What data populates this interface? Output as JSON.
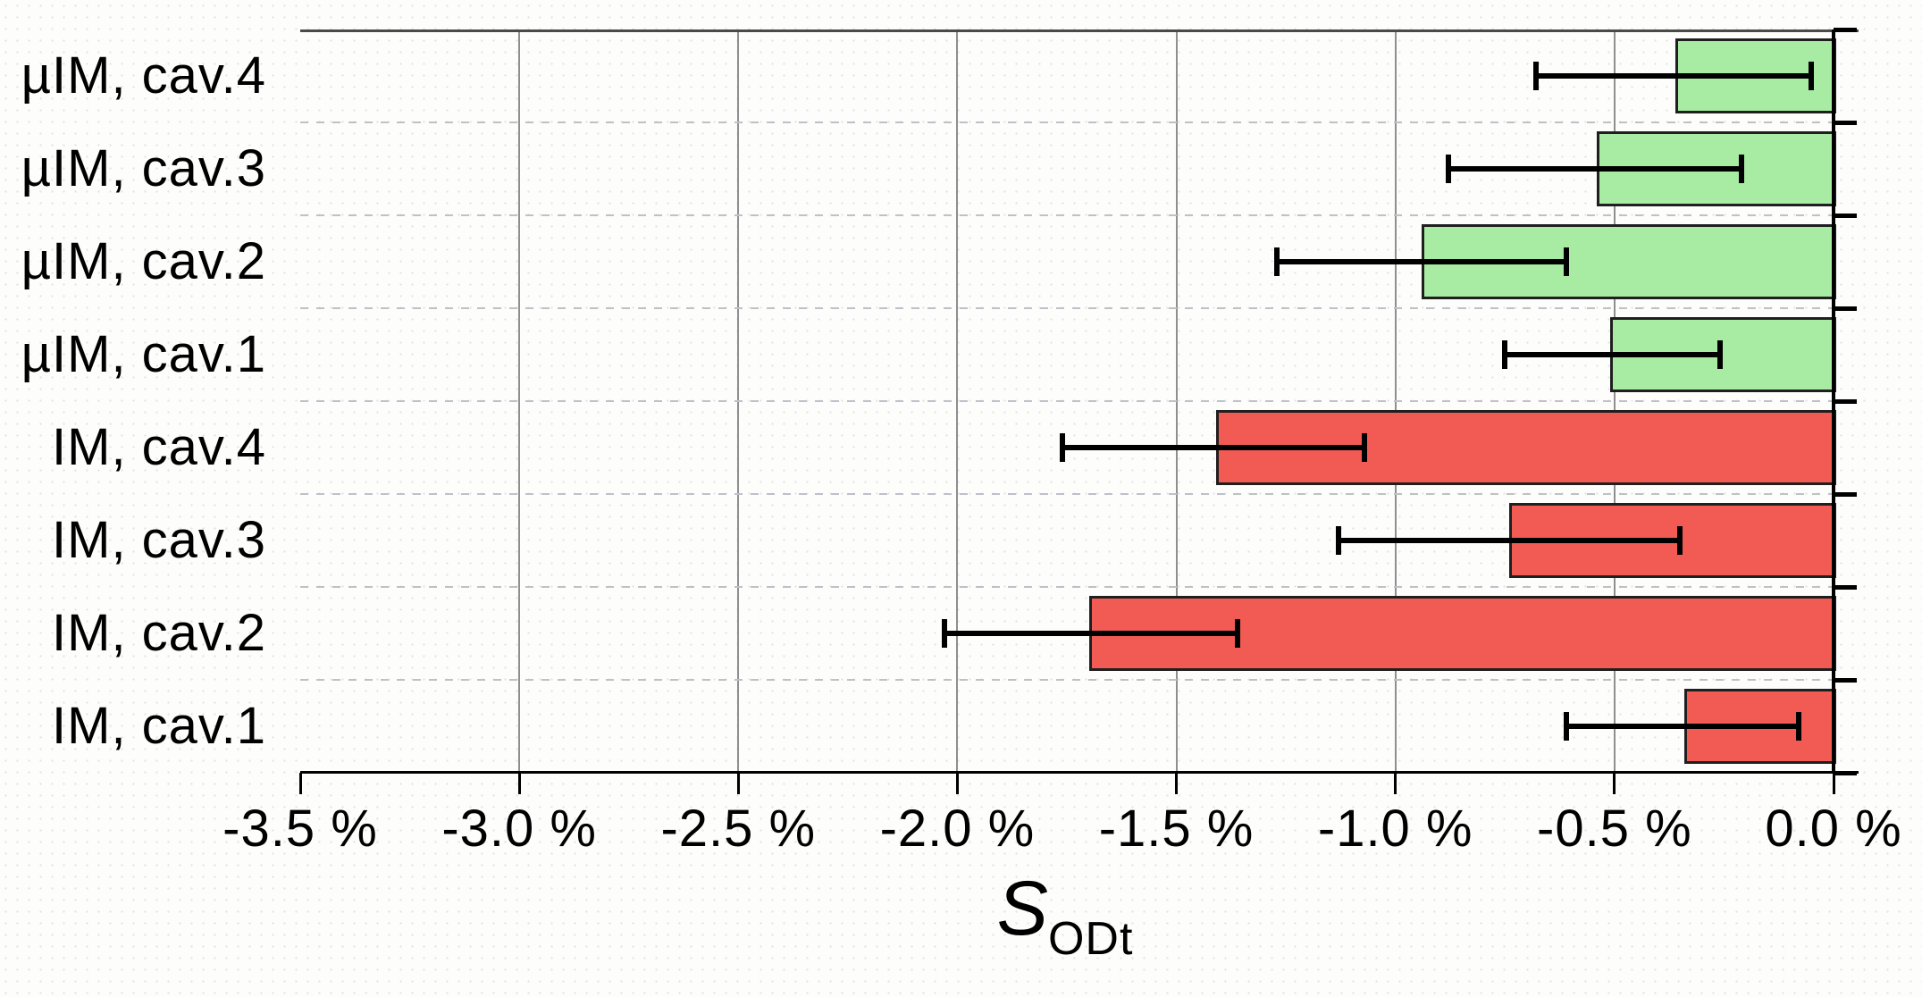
{
  "chart_data": {
    "type": "bar",
    "orientation": "horizontal",
    "title": "",
    "xlabel_main": "S",
    "xlabel_sub": "ODt",
    "grid": "vertical-solid, category-separators-dotted",
    "legend": "none",
    "x_axis": {
      "min": -3.5,
      "max": 0.0,
      "tick_step": 0.5,
      "tick_labels": [
        "-3.5 %",
        "-3.0 %",
        "-2.5 %",
        "-2.0 %",
        "-1.5 %",
        "-1.0 %",
        "-0.5 %",
        "0.0 %"
      ]
    },
    "rows": [
      {
        "label": "µIM, cav.4",
        "group": "uIM",
        "value": -0.36,
        "err_low": -0.68,
        "err_high": -0.05
      },
      {
        "label": "µIM, cav.3",
        "group": "uIM",
        "value": -0.54,
        "err_low": -0.88,
        "err_high": -0.21
      },
      {
        "label": "µIM, cav.2",
        "group": "uIM",
        "value": -0.94,
        "err_low": -1.27,
        "err_high": -0.61
      },
      {
        "label": "µIM, cav.1",
        "group": "uIM",
        "value": -0.51,
        "err_low": -0.75,
        "err_high": -0.26
      },
      {
        "label": "IM, cav.4",
        "group": "IM",
        "value": -1.41,
        "err_low": -1.76,
        "err_high": -1.07
      },
      {
        "label": "IM, cav.3",
        "group": "IM",
        "value": -0.74,
        "err_low": -1.13,
        "err_high": -0.35
      },
      {
        "label": "IM, cav.2",
        "group": "IM",
        "value": -1.7,
        "err_low": -2.03,
        "err_high": -1.36
      },
      {
        "label": "IM, cav.1",
        "group": "IM",
        "value": -0.34,
        "err_low": -0.61,
        "err_high": -0.08
      }
    ],
    "colors": {
      "uIM": "#a7eca2",
      "IM": "#f25b54",
      "bar_border": "#1f1f1f",
      "gridline": "#8f8f8f",
      "axis": "#000000",
      "separator": "#c0c0ca"
    }
  }
}
